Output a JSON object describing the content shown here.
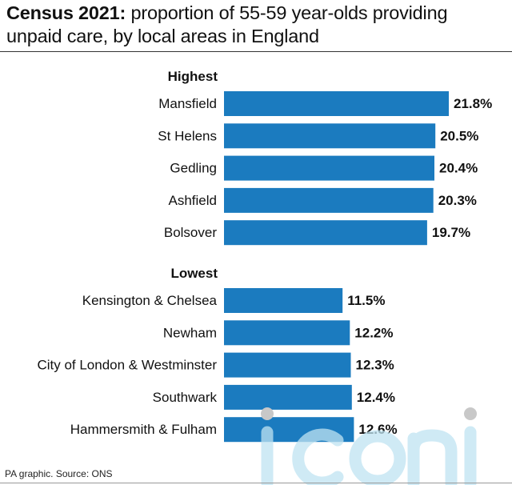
{
  "title": {
    "bold": "Census 2021:",
    "rest": " proportion of 55-59 year-olds providing unpaid care, by local areas in England"
  },
  "source": "PA graphic. Source: ONS",
  "watermark": "iconic",
  "colors": {
    "bar": "#1b7bbf",
    "text": "#111111"
  },
  "chart_data": {
    "type": "bar",
    "orientation": "horizontal",
    "unit": "%",
    "xlim": [
      0,
      21.8
    ],
    "groups": [
      {
        "label": "Highest",
        "categories": [
          "Mansfield",
          "St Helens",
          "Gedling",
          "Ashfield",
          "Bolsover"
        ],
        "values": [
          21.8,
          20.5,
          20.4,
          20.3,
          19.7
        ],
        "value_labels": [
          "21.8%",
          "20.5%",
          "20.4%",
          "20.3%",
          "19.7%"
        ]
      },
      {
        "label": "Lowest",
        "categories": [
          "Kensington & Chelsea",
          "Newham",
          "City of London & Westminster",
          "Southwark",
          "Hammersmith & Fulham"
        ],
        "values": [
          11.5,
          12.2,
          12.3,
          12.4,
          12.6
        ],
        "value_labels": [
          "11.5%",
          "12.2%",
          "12.3%",
          "12.4%",
          "12.6%"
        ]
      }
    ]
  }
}
